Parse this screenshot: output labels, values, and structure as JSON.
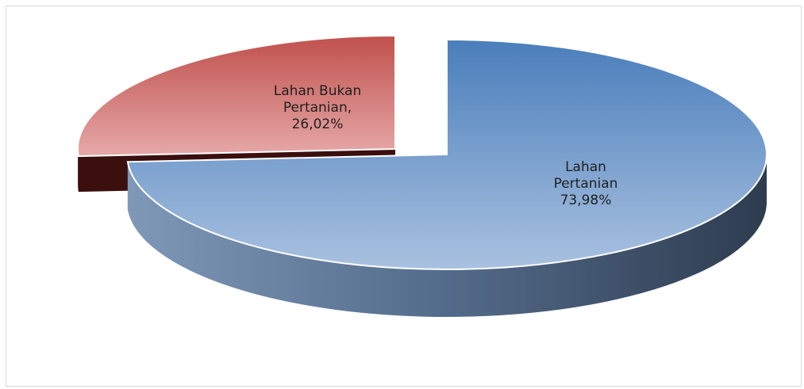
{
  "chart_data": {
    "type": "pie",
    "style": "3d-exploded",
    "title": "",
    "slices": [
      {
        "label_lines": [
          "Lahan",
          "Pertanian",
          "73,98%"
        ],
        "category": "Lahan Pertanian",
        "value": 73.98,
        "color": "#4f81bd"
      },
      {
        "label_lines": [
          "Lahan Bukan",
          "Pertanian,",
          "26,02%"
        ],
        "category": "Lahan Bukan Pertanian",
        "value": 26.02,
        "color": "#c0504d"
      }
    ],
    "legend": "none",
    "grid": false
  }
}
